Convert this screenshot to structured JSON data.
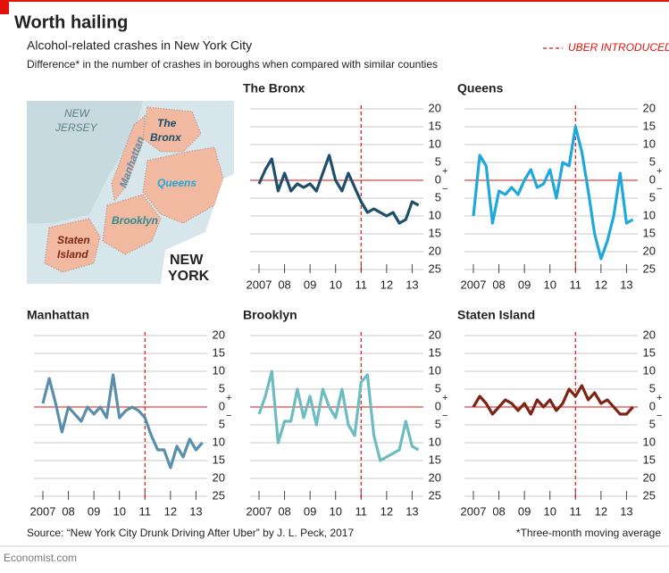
{
  "header": {
    "title": "Worth hailing",
    "subtitle": "Alcohol-related crashes in New York City",
    "description": "Difference* in the number of crashes in boroughs when compared with similar counties",
    "legend": "UBER INTRODUCED"
  },
  "axis_signs": {
    "plus": "+",
    "minus": "−"
  },
  "map": {
    "new_jersey": [
      "NEW",
      "JERSEY"
    ],
    "bronx": [
      "The",
      "Bronx"
    ],
    "manhattan": [
      "Manhattan"
    ],
    "queens": [
      "Queens"
    ],
    "brooklyn": [
      "Brooklyn"
    ],
    "staten_island": [
      "Staten",
      "Island"
    ],
    "new_york": [
      "NEW",
      "YORK"
    ]
  },
  "footer": {
    "source": "Source: “New York City Drunk Driving After Uber” by J. L. Peck, 2017",
    "note": "*Three-month moving average",
    "brand": "Economist.com"
  },
  "chart_data": [
    {
      "type": "line",
      "title": "The Bronx",
      "color": "#1d4f6b",
      "uber_x": 2011,
      "x": [
        2007,
        2007.25,
        2007.5,
        2007.75,
        2008,
        2008.25,
        2008.5,
        2008.75,
        2009,
        2009.25,
        2009.5,
        2009.75,
        2010,
        2010.25,
        2010.5,
        2010.75,
        2011,
        2011.25,
        2011.5,
        2011.75,
        2012,
        2012.25,
        2012.5,
        2012.75,
        2013,
        2013.25
      ],
      "values": [
        -1,
        3,
        6,
        -3,
        2,
        -3,
        -1,
        -2,
        -1,
        -3,
        2,
        7,
        0,
        -3,
        2,
        -2,
        -6,
        -9,
        -8,
        -9,
        -10,
        -9,
        -12,
        -11,
        -6,
        -7
      ],
      "xlim": [
        2006.65,
        2013.3
      ],
      "ylim": [
        -25,
        20
      ],
      "xticks": [
        2007,
        {
          "value": 2008,
          "label": "08"
        },
        {
          "value": 2009,
          "label": "09"
        },
        {
          "value": 2010,
          "label": "10"
        },
        {
          "value": 2011,
          "label": "11"
        },
        {
          "value": 2012,
          "label": "12"
        },
        {
          "value": 2013,
          "label": "13"
        }
      ],
      "yticks": [
        20,
        15,
        10,
        5,
        0,
        {
          "value": -5,
          "label": "5"
        },
        {
          "value": -10,
          "label": "10"
        },
        {
          "value": -15,
          "label": "15"
        },
        {
          "value": -20,
          "label": "20"
        },
        {
          "value": -25,
          "label": "25"
        }
      ]
    },
    {
      "type": "line",
      "title": "Queens",
      "color": "#1ea8dc",
      "uber_x": 2011,
      "x": [
        2007,
        2007.25,
        2007.5,
        2007.75,
        2008,
        2008.25,
        2008.5,
        2008.75,
        2009,
        2009.25,
        2009.5,
        2009.75,
        2010,
        2010.25,
        2010.5,
        2010.75,
        2011,
        2011.25,
        2011.5,
        2011.75,
        2012,
        2012.25,
        2012.5,
        2012.75,
        2013,
        2013.25
      ],
      "values": [
        -10,
        7,
        4,
        -12,
        -3,
        -4,
        -2,
        -4,
        0,
        3,
        -2,
        -1,
        3,
        -5,
        5,
        4,
        15,
        8,
        -3,
        -15,
        -22,
        -17,
        -10,
        2,
        -12,
        -11
      ],
      "xlim": [
        2006.65,
        2013.3
      ],
      "ylim": [
        -25,
        20
      ],
      "xticks": [
        2007,
        {
          "value": 2008,
          "label": "08"
        },
        {
          "value": 2009,
          "label": "09"
        },
        {
          "value": 2010,
          "label": "10"
        },
        {
          "value": 2011,
          "label": "11"
        },
        {
          "value": 2012,
          "label": "12"
        },
        {
          "value": 2013,
          "label": "13"
        }
      ],
      "yticks": [
        20,
        15,
        10,
        5,
        0,
        {
          "value": -5,
          "label": "5"
        },
        {
          "value": -10,
          "label": "10"
        },
        {
          "value": -15,
          "label": "15"
        },
        {
          "value": -20,
          "label": "20"
        },
        {
          "value": -25,
          "label": "25"
        }
      ]
    },
    {
      "type": "line",
      "title": "Manhattan",
      "color": "#5a8fab",
      "uber_x": 2011,
      "x": [
        2007,
        2007.25,
        2007.5,
        2007.75,
        2008,
        2008.25,
        2008.5,
        2008.75,
        2009,
        2009.25,
        2009.5,
        2009.75,
        2010,
        2010.25,
        2010.5,
        2010.75,
        2011,
        2011.25,
        2011.5,
        2011.75,
        2012,
        2012.25,
        2012.5,
        2012.75,
        2013,
        2013.25
      ],
      "values": [
        1,
        8,
        1,
        -7,
        0,
        -2,
        -4,
        0,
        -2,
        0,
        -3,
        9,
        -3,
        -1,
        0,
        -1,
        -3,
        -8,
        -12,
        -12,
        -17,
        -11,
        -14,
        -9,
        -12,
        -10
      ],
      "xlim": [
        2006.65,
        2013.3
      ],
      "ylim": [
        -25,
        20
      ],
      "xticks": [
        2007,
        {
          "value": 2008,
          "label": "08"
        },
        {
          "value": 2009,
          "label": "09"
        },
        {
          "value": 2010,
          "label": "10"
        },
        {
          "value": 2011,
          "label": "11"
        },
        {
          "value": 2012,
          "label": "12"
        },
        {
          "value": 2013,
          "label": "13"
        }
      ],
      "yticks": [
        20,
        15,
        10,
        5,
        0,
        {
          "value": -5,
          "label": "5"
        },
        {
          "value": -10,
          "label": "10"
        },
        {
          "value": -15,
          "label": "15"
        },
        {
          "value": -20,
          "label": "20"
        },
        {
          "value": -25,
          "label": "25"
        }
      ]
    },
    {
      "type": "line",
      "title": "Brooklyn",
      "color": "#6cbcc0",
      "uber_x": 2011,
      "x": [
        2007,
        2007.25,
        2007.5,
        2007.75,
        2008,
        2008.25,
        2008.5,
        2008.75,
        2009,
        2009.25,
        2009.5,
        2009.75,
        2010,
        2010.25,
        2010.5,
        2010.75,
        2011,
        2011.25,
        2011.5,
        2011.75,
        2012,
        2012.25,
        2012.5,
        2012.75,
        2013,
        2013.25
      ],
      "values": [
        -2,
        3,
        10,
        -10,
        -4,
        -4,
        5,
        -3,
        3,
        -5,
        5,
        0,
        -3,
        5,
        -5,
        -8,
        7,
        9,
        -8,
        -15,
        -14,
        -13,
        -12,
        -4,
        -11,
        -12
      ],
      "xlim": [
        2006.65,
        2013.3
      ],
      "ylim": [
        -25,
        20
      ],
      "xticks": [
        2007,
        {
          "value": 2008,
          "label": "08"
        },
        {
          "value": 2009,
          "label": "09"
        },
        {
          "value": 2010,
          "label": "10"
        },
        {
          "value": 2011,
          "label": "11"
        },
        {
          "value": 2012,
          "label": "12"
        },
        {
          "value": 2013,
          "label": "13"
        }
      ],
      "yticks": [
        20,
        15,
        10,
        5,
        0,
        {
          "value": -5,
          "label": "5"
        },
        {
          "value": -10,
          "label": "10"
        },
        {
          "value": -15,
          "label": "15"
        },
        {
          "value": -20,
          "label": "20"
        },
        {
          "value": -25,
          "label": "25"
        }
      ]
    },
    {
      "type": "line",
      "title": "Staten Island",
      "color": "#7d2416",
      "uber_x": 2011,
      "x": [
        2007,
        2007.25,
        2007.5,
        2007.75,
        2008,
        2008.25,
        2008.5,
        2008.75,
        2009,
        2009.25,
        2009.5,
        2009.75,
        2010,
        2010.25,
        2010.5,
        2010.75,
        2011,
        2011.25,
        2011.5,
        2011.75,
        2012,
        2012.25,
        2012.5,
        2012.75,
        2013,
        2013.25
      ],
      "values": [
        0,
        3,
        1,
        -2,
        0,
        2,
        1,
        -1,
        1,
        -2,
        2,
        0,
        2,
        -1,
        1,
        5,
        3,
        6,
        2,
        4,
        1,
        2,
        0,
        -2,
        -2,
        0
      ],
      "xlim": [
        2006.65,
        2013.3
      ],
      "ylim": [
        -25,
        20
      ],
      "xticks": [
        2007,
        {
          "value": 2008,
          "label": "08"
        },
        {
          "value": 2009,
          "label": "09"
        },
        {
          "value": 2010,
          "label": "10"
        },
        {
          "value": 2011,
          "label": "11"
        },
        {
          "value": 2012,
          "label": "12"
        },
        {
          "value": 2013,
          "label": "13"
        }
      ],
      "yticks": [
        20,
        15,
        10,
        5,
        0,
        {
          "value": -5,
          "label": "5"
        },
        {
          "value": -10,
          "label": "10"
        },
        {
          "value": -15,
          "label": "15"
        },
        {
          "value": -20,
          "label": "20"
        },
        {
          "value": -25,
          "label": "25"
        }
      ]
    }
  ]
}
